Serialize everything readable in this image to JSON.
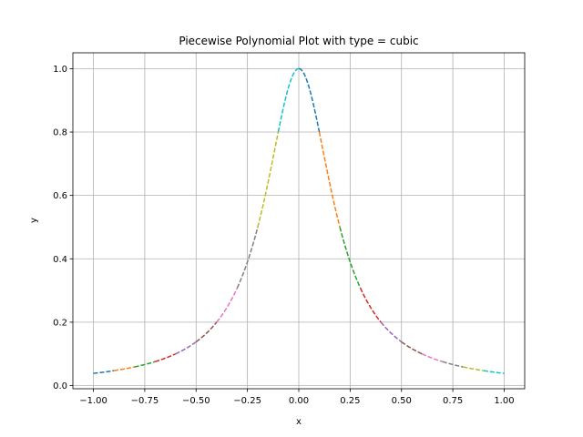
{
  "chart_data": {
    "type": "line",
    "title": "Piecewise Polynomial Plot with type = cubic",
    "xlabel": "x",
    "ylabel": "y",
    "xlim": [
      -1.1,
      1.1
    ],
    "ylim": [
      -0.01,
      1.05
    ],
    "grid": true,
    "x_ticks": [
      -1.0,
      -0.75,
      -0.5,
      -0.25,
      0.0,
      0.25,
      0.5,
      0.75,
      1.0
    ],
    "x_tick_labels": [
      "−1.00",
      "−0.75",
      "−0.50",
      "−0.25",
      "0.00",
      "0.25",
      "0.50",
      "0.75",
      "1.00"
    ],
    "y_ticks": [
      0.0,
      0.2,
      0.4,
      0.6,
      0.8,
      1.0
    ],
    "y_tick_labels": [
      "0.0",
      "0.2",
      "0.4",
      "0.6",
      "0.8",
      "1.0"
    ],
    "function": "y = 1 / (1 + 25 x^2)",
    "segment_colors": [
      "#1f77b4",
      "#ff7f0e",
      "#2ca02c",
      "#d62728",
      "#9467bd",
      "#8c564b",
      "#e377c2",
      "#7f7f7f",
      "#bcbd22",
      "#17becf"
    ],
    "series": [
      {
        "x_range": [
          -1.0,
          -0.9
        ],
        "color": "#1f77b4"
      },
      {
        "x_range": [
          -0.9,
          -0.8
        ],
        "color": "#ff7f0e"
      },
      {
        "x_range": [
          -0.8,
          -0.7
        ],
        "color": "#2ca02c"
      },
      {
        "x_range": [
          -0.7,
          -0.6
        ],
        "color": "#d62728"
      },
      {
        "x_range": [
          -0.6,
          -0.5
        ],
        "color": "#9467bd"
      },
      {
        "x_range": [
          -0.5,
          -0.4
        ],
        "color": "#8c564b"
      },
      {
        "x_range": [
          -0.4,
          -0.3
        ],
        "color": "#e377c2"
      },
      {
        "x_range": [
          -0.3,
          -0.2
        ],
        "color": "#7f7f7f"
      },
      {
        "x_range": [
          -0.2,
          -0.1
        ],
        "color": "#bcbd22"
      },
      {
        "x_range": [
          -0.1,
          0.0
        ],
        "color": "#17becf"
      },
      {
        "x_range": [
          0.0,
          0.1
        ],
        "color": "#1f77b4"
      },
      {
        "x_range": [
          0.1,
          0.2
        ],
        "color": "#ff7f0e"
      },
      {
        "x_range": [
          0.2,
          0.3
        ],
        "color": "#2ca02c"
      },
      {
        "x_range": [
          0.3,
          0.4
        ],
        "color": "#d62728"
      },
      {
        "x_range": [
          0.4,
          0.5
        ],
        "color": "#9467bd"
      },
      {
        "x_range": [
          0.5,
          0.6
        ],
        "color": "#8c564b"
      },
      {
        "x_range": [
          0.6,
          0.7
        ],
        "color": "#e377c2"
      },
      {
        "x_range": [
          0.7,
          0.8
        ],
        "color": "#7f7f7f"
      },
      {
        "x_range": [
          0.8,
          0.9
        ],
        "color": "#bcbd22"
      },
      {
        "x_range": [
          0.9,
          1.0
        ],
        "color": "#17becf"
      }
    ]
  }
}
